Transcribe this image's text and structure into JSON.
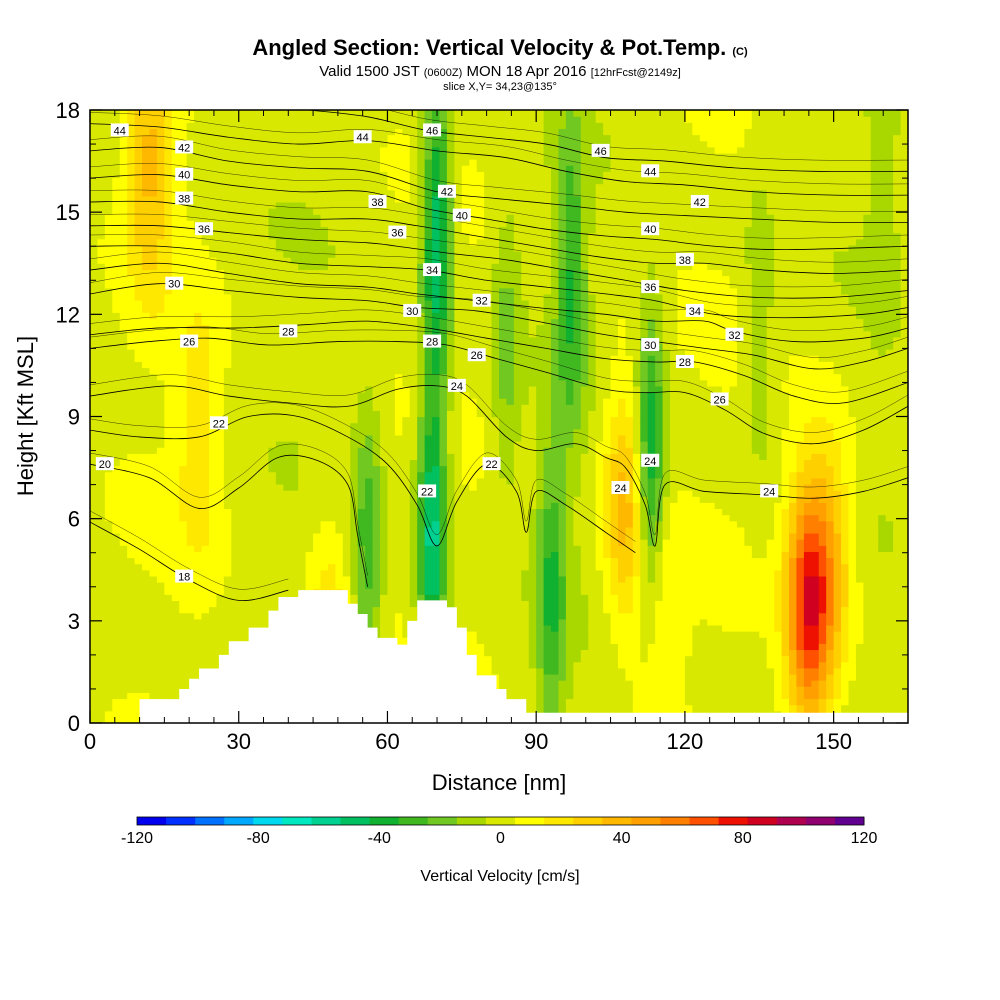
{
  "header": {
    "title": "Angled Section: Vertical Velocity & Pot.Temp.",
    "title_unit": "(C)",
    "valid_prefix": "Valid 1500 JST",
    "valid_utc": "(0600Z)",
    "valid_date": "MON 18 Apr 2016",
    "forecast": "[12hrFcst@2149z]",
    "slice": "slice X,Y= 34,23@135°"
  },
  "chart_data": {
    "type": "heatmap",
    "xlabel": "Distance [nm]",
    "ylabel": "Height [Kft MSL]",
    "xlim": [
      0,
      165
    ],
    "ylim": [
      0,
      18
    ],
    "x_ticks": [
      "0",
      "30",
      "60",
      "90",
      "120",
      "150"
    ],
    "y_ticks": [
      "0",
      "3",
      "6",
      "9",
      "12",
      "15",
      "18"
    ],
    "colorbar": {
      "title": "Vertical Velocity [cm/s]",
      "range": [
        -120,
        120
      ],
      "step": 10,
      "tick_labels": [
        "-120",
        "-80",
        "-40",
        "0",
        "40",
        "80",
        "120"
      ],
      "colors": [
        "#0000ee",
        "#0030ff",
        "#0070ff",
        "#00a8ff",
        "#00d8f0",
        "#00e8c0",
        "#00d090",
        "#00c060",
        "#10b030",
        "#40b820",
        "#70c820",
        "#a8d800",
        "#d8e800",
        "#ffff00",
        "#ffe800",
        "#ffd000",
        "#ffb800",
        "#ffa000",
        "#ff8000",
        "#ff5000",
        "#ee1000",
        "#d00020",
        "#b00050",
        "#900070",
        "#600090"
      ]
    },
    "updrafts": [
      {
        "x": 108,
        "h": 6.5,
        "w": 40
      },
      {
        "x": 145,
        "h": 3.5,
        "w": 80
      },
      {
        "x": 150,
        "h": 5.0,
        "w": 30
      },
      {
        "x": 12,
        "h": 16.5,
        "w": 35
      },
      {
        "x": 22,
        "h": 8.5,
        "w": 20
      },
      {
        "x": 48,
        "h": 2.5,
        "w": 22
      },
      {
        "x": 115,
        "h": 2.5,
        "w": 20
      }
    ],
    "downdrafts": [
      {
        "x": 70,
        "h": 14.5,
        "w": -55
      },
      {
        "x": 69,
        "h": 5.5,
        "w": -60
      },
      {
        "x": 113,
        "h": 7.5,
        "w": -50
      },
      {
        "x": 93,
        "h": 4.0,
        "w": -35
      },
      {
        "x": 97,
        "h": 13.0,
        "w": -35
      },
      {
        "x": 56,
        "h": 5.0,
        "w": -30
      },
      {
        "x": 84,
        "h": 11.0,
        "w": -20
      },
      {
        "x": 135,
        "h": 12.0,
        "w": -15
      },
      {
        "x": 160,
        "h": 16.0,
        "w": -10
      }
    ],
    "terrain": [
      [
        10,
        0.7
      ],
      [
        18,
        1.0
      ],
      [
        20,
        1.3
      ],
      [
        22,
        1.6
      ],
      [
        26,
        2.0
      ],
      [
        28,
        2.4
      ],
      [
        32,
        2.8
      ],
      [
        36,
        3.3
      ],
      [
        38,
        3.7
      ],
      [
        42,
        3.9
      ],
      [
        48,
        3.9
      ],
      [
        52,
        3.5
      ],
      [
        54,
        3.2
      ],
      [
        56,
        2.8
      ],
      [
        58,
        2.5
      ],
      [
        62,
        2.3
      ],
      [
        64,
        3.0
      ],
      [
        66,
        3.6
      ],
      [
        70,
        3.6
      ],
      [
        72,
        3.4
      ],
      [
        74,
        2.8
      ],
      [
        76,
        2.0
      ],
      [
        78,
        1.4
      ],
      [
        82,
        1.0
      ],
      [
        84,
        0.7
      ],
      [
        88,
        0.3
      ],
      [
        165,
        0.0
      ]
    ],
    "isentropes": [
      {
        "label": "18",
        "label_at": {
          "x": 19,
          "h": 4.3
        },
        "pts": [
          [
            0,
            5.9
          ],
          [
            10,
            5.1
          ],
          [
            20,
            4.2
          ],
          [
            30,
            3.6
          ],
          [
            40,
            3.9
          ]
        ]
      },
      {
        "label": "20",
        "label_at": {
          "x": 3,
          "h": 7.6
        },
        "pts": [
          [
            0,
            7.6
          ],
          [
            12,
            7.2
          ],
          [
            22,
            6.3
          ],
          [
            30,
            6.9
          ],
          [
            38,
            7.8
          ],
          [
            46,
            7.7
          ],
          [
            52,
            7.0
          ],
          [
            54,
            5.5
          ],
          [
            56,
            4.0
          ]
        ]
      },
      {
        "label": "22",
        "label_at": {
          "x": 26,
          "h": 8.8
        },
        "pts": [
          [
            0,
            8.6
          ],
          [
            10,
            8.4
          ],
          [
            22,
            8.4
          ],
          [
            32,
            9.0
          ],
          [
            42,
            9.0
          ],
          [
            52,
            8.4
          ],
          [
            60,
            7.6
          ],
          [
            66,
            6.4
          ],
          [
            70,
            5.2
          ],
          [
            74,
            6.5
          ],
          [
            80,
            7.6
          ],
          [
            86,
            6.8
          ],
          [
            88,
            5.6
          ],
          [
            90,
            6.8
          ],
          [
            96,
            6.4
          ],
          [
            104,
            5.6
          ],
          [
            110,
            5.0
          ]
        ]
      },
      {
        "label": "24",
        "label_at": {
          "x": 74,
          "h": 9.9
        },
        "pts": [
          [
            0,
            9.6
          ],
          [
            16,
            9.9
          ],
          [
            28,
            9.6
          ],
          [
            40,
            9.4
          ],
          [
            52,
            9.3
          ],
          [
            62,
            9.8
          ],
          [
            70,
            9.9
          ],
          [
            76,
            9.6
          ],
          [
            84,
            8.4
          ],
          [
            90,
            8.0
          ],
          [
            98,
            8.2
          ],
          [
            104,
            7.8
          ],
          [
            108,
            7.5
          ],
          [
            112,
            6.4
          ],
          [
            114,
            5.2
          ],
          [
            116,
            7.0
          ],
          [
            124,
            6.8
          ],
          [
            136,
            6.7
          ],
          [
            146,
            6.6
          ],
          [
            156,
            6.8
          ],
          [
            165,
            7.2
          ]
        ]
      },
      {
        "label": "26",
        "label_at": {
          "x": 20,
          "h": 11.2
        },
        "pts": [
          [
            0,
            11.0
          ],
          [
            12,
            11.2
          ],
          [
            24,
            11.3
          ],
          [
            36,
            11.1
          ],
          [
            50,
            11.2
          ],
          [
            62,
            11.2
          ],
          [
            72,
            11.1
          ],
          [
            82,
            10.7
          ],
          [
            92,
            10.3
          ],
          [
            104,
            9.8
          ],
          [
            112,
            9.7
          ],
          [
            120,
            9.7
          ],
          [
            128,
            9.2
          ],
          [
            136,
            8.5
          ],
          [
            146,
            8.2
          ],
          [
            156,
            8.6
          ],
          [
            165,
            9.3
          ]
        ]
      },
      {
        "label": "28",
        "label_at": {
          "x": 40,
          "h": 11.5
        },
        "pts": [
          [
            0,
            11.4
          ],
          [
            14,
            11.6
          ],
          [
            30,
            11.6
          ],
          [
            44,
            11.7
          ],
          [
            56,
            11.8
          ],
          [
            68,
            11.6
          ],
          [
            80,
            11.3
          ],
          [
            92,
            11.0
          ],
          [
            104,
            10.7
          ],
          [
            114,
            10.6
          ],
          [
            122,
            10.6
          ],
          [
            132,
            10.2
          ],
          [
            142,
            9.6
          ],
          [
            152,
            9.4
          ],
          [
            165,
            10.0
          ]
        ]
      },
      {
        "label": "30",
        "label_at": {
          "x": 17,
          "h": 12.9
        },
        "pts": [
          [
            0,
            12.6
          ],
          [
            14,
            12.9
          ],
          [
            28,
            12.7
          ],
          [
            42,
            12.5
          ],
          [
            56,
            12.4
          ],
          [
            66,
            12.2
          ],
          [
            78,
            12.1
          ],
          [
            90,
            11.8
          ],
          [
            104,
            11.4
          ],
          [
            114,
            11.2
          ],
          [
            124,
            11.0
          ],
          [
            134,
            10.8
          ],
          [
            146,
            10.4
          ],
          [
            156,
            10.6
          ],
          [
            165,
            11.0
          ]
        ]
      },
      {
        "label": "32",
        "label_at": {
          "x": 79,
          "h": 12.4
        },
        "pts": [
          [
            0,
            13.3
          ],
          [
            14,
            13.5
          ],
          [
            28,
            13.2
          ],
          [
            42,
            12.9
          ],
          [
            56,
            12.8
          ],
          [
            66,
            12.6
          ],
          [
            78,
            12.4
          ],
          [
            90,
            12.2
          ],
          [
            104,
            12.0
          ],
          [
            114,
            11.8
          ],
          [
            124,
            11.8
          ],
          [
            130,
            11.5
          ],
          [
            142,
            11.2
          ],
          [
            156,
            11.3
          ],
          [
            165,
            11.6
          ]
        ]
      },
      {
        "label": "34",
        "label_at": {
          "x": 69,
          "h": 13.3
        },
        "pts": [
          [
            0,
            14.0
          ],
          [
            14,
            14.0
          ],
          [
            28,
            13.8
          ],
          [
            42,
            13.5
          ],
          [
            56,
            13.4
          ],
          [
            68,
            13.3
          ],
          [
            80,
            13.0
          ],
          [
            92,
            12.8
          ],
          [
            104,
            12.6
          ],
          [
            114,
            12.4
          ],
          [
            126,
            12.0
          ],
          [
            140,
            11.9
          ],
          [
            156,
            12.0
          ],
          [
            165,
            12.2
          ]
        ]
      },
      {
        "label": "36",
        "label_at": {
          "x": 23,
          "h": 14.5
        },
        "pts": [
          [
            0,
            14.6
          ],
          [
            14,
            14.6
          ],
          [
            28,
            14.4
          ],
          [
            42,
            14.2
          ],
          [
            56,
            14.1
          ],
          [
            62,
            14.0
          ],
          [
            72,
            13.8
          ],
          [
            84,
            13.6
          ],
          [
            96,
            13.3
          ],
          [
            108,
            13.0
          ],
          [
            120,
            12.7
          ],
          [
            134,
            12.5
          ],
          [
            150,
            12.5
          ],
          [
            165,
            12.7
          ]
        ]
      },
      {
        "label": "38",
        "label_at": {
          "x": 19,
          "h": 15.4
        },
        "pts": [
          [
            0,
            15.3
          ],
          [
            14,
            15.3
          ],
          [
            28,
            15.0
          ],
          [
            42,
            14.8
          ],
          [
            56,
            14.8
          ],
          [
            66,
            14.6
          ],
          [
            78,
            14.3
          ],
          [
            90,
            14.0
          ],
          [
            102,
            13.7
          ],
          [
            114,
            13.5
          ],
          [
            124,
            13.5
          ],
          [
            136,
            13.3
          ],
          [
            150,
            13.2
          ],
          [
            165,
            13.3
          ]
        ]
      },
      {
        "label": "40",
        "label_at": {
          "x": 19,
          "h": 16.1
        },
        "pts": [
          [
            0,
            16.0
          ],
          [
            14,
            16.1
          ],
          [
            28,
            15.8
          ],
          [
            42,
            15.6
          ],
          [
            56,
            15.6
          ],
          [
            68,
            15.1
          ],
          [
            80,
            14.8
          ],
          [
            92,
            14.5
          ],
          [
            104,
            14.3
          ],
          [
            114,
            14.2
          ],
          [
            126,
            14.0
          ],
          [
            140,
            13.9
          ],
          [
            165,
            14.0
          ]
        ]
      },
      {
        "label": "42",
        "label_at": {
          "x": 19,
          "h": 16.9
        },
        "pts": [
          [
            0,
            16.8
          ],
          [
            14,
            16.9
          ],
          [
            28,
            16.5
          ],
          [
            42,
            16.3
          ],
          [
            56,
            16.2
          ],
          [
            70,
            15.6
          ],
          [
            82,
            15.4
          ],
          [
            96,
            15.2
          ],
          [
            108,
            15.0
          ],
          [
            120,
            14.9
          ],
          [
            134,
            14.8
          ],
          [
            150,
            14.7
          ],
          [
            165,
            14.7
          ]
        ]
      },
      {
        "label": "44",
        "label_at": {
          "x": 6,
          "h": 17.4
        },
        "pts": [
          [
            0,
            17.6
          ],
          [
            14,
            17.5
          ],
          [
            28,
            17.2
          ],
          [
            42,
            17.0
          ],
          [
            56,
            17.1
          ],
          [
            70,
            16.8
          ],
          [
            84,
            16.6
          ],
          [
            96,
            16.2
          ],
          [
            108,
            15.9
          ],
          [
            120,
            15.8
          ],
          [
            134,
            15.6
          ],
          [
            150,
            15.5
          ],
          [
            165,
            15.5
          ]
        ]
      },
      {
        "label": "46",
        "label_at": {
          "x": 69,
          "h": 17.4
        },
        "pts": [
          [
            44,
            18.0
          ],
          [
            56,
            17.8
          ],
          [
            68,
            17.4
          ],
          [
            80,
            17.2
          ],
          [
            92,
            17.0
          ],
          [
            104,
            16.6
          ],
          [
            116,
            16.5
          ],
          [
            130,
            16.3
          ],
          [
            146,
            16.2
          ],
          [
            165,
            16.2
          ]
        ]
      }
    ],
    "extra_labels": [
      {
        "label": "24",
        "x": 113,
        "h": 7.7
      },
      {
        "label": "24",
        "x": 107,
        "h": 6.9
      },
      {
        "label": "24",
        "x": 137,
        "h": 6.8
      },
      {
        "label": "22",
        "x": 81,
        "h": 7.6
      },
      {
        "label": "22",
        "x": 68,
        "h": 6.8
      },
      {
        "label": "26",
        "x": 78,
        "h": 10.8
      },
      {
        "label": "26",
        "x": 127,
        "h": 9.5
      },
      {
        "label": "28",
        "x": 69,
        "h": 11.2
      },
      {
        "label": "28",
        "x": 120,
        "h": 10.6
      },
      {
        "label": "30",
        "x": 65,
        "h": 12.1
      },
      {
        "label": "30",
        "x": 113,
        "h": 11.1
      },
      {
        "label": "32",
        "x": 130,
        "h": 11.4
      },
      {
        "label": "34",
        "x": 122,
        "h": 12.1
      },
      {
        "label": "36",
        "x": 62,
        "h": 14.4
      },
      {
        "label": "36",
        "x": 113,
        "h": 12.8
      },
      {
        "label": "38",
        "x": 58,
        "h": 15.3
      },
      {
        "label": "38",
        "x": 120,
        "h": 13.6
      },
      {
        "label": "40",
        "x": 75,
        "h": 14.9
      },
      {
        "label": "40",
        "x": 113,
        "h": 14.5
      },
      {
        "label": "42",
        "x": 72,
        "h": 15.6
      },
      {
        "label": "42",
        "x": 123,
        "h": 15.3
      },
      {
        "label": "44",
        "x": 55,
        "h": 17.2
      },
      {
        "label": "44",
        "x": 113,
        "h": 16.2
      },
      {
        "label": "46",
        "x": 103,
        "h": 16.8
      }
    ]
  }
}
